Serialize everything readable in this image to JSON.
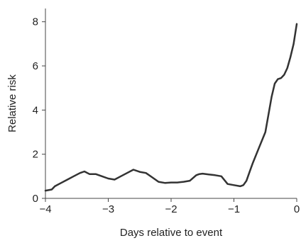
{
  "chart_data": {
    "type": "line",
    "title": "",
    "xlabel": "Days relative to event",
    "ylabel": "Relative risk",
    "xlim": [
      -4,
      0
    ],
    "ylim": [
      0,
      8.6
    ],
    "xticks": [
      -4,
      -3,
      -2,
      -1,
      0
    ],
    "xtick_labels": [
      "−4",
      "−3",
      "−2",
      "−1",
      "0"
    ],
    "yticks": [
      0,
      2,
      4,
      6,
      8
    ],
    "ytick_labels": [
      "0",
      "2",
      "4",
      "6",
      "8"
    ],
    "grid": false,
    "legend": "none",
    "line_color": "#333333",
    "series": [
      {
        "x": [
          -4.0,
          -3.9,
          -3.85,
          -3.75,
          -3.65,
          -3.55,
          -3.45,
          -3.38,
          -3.3,
          -3.2,
          -3.1,
          -3.0,
          -2.9,
          -2.8,
          -2.7,
          -2.6,
          -2.5,
          -2.4,
          -2.3,
          -2.2,
          -2.1,
          -2.0,
          -1.9,
          -1.8,
          -1.7,
          -1.6,
          -1.55,
          -1.5,
          -1.4,
          -1.3,
          -1.2,
          -1.1,
          -1.0,
          -0.9,
          -0.85,
          -0.8,
          -0.75,
          -0.7,
          -0.6,
          -0.5,
          -0.45,
          -0.4,
          -0.35,
          -0.3,
          -0.25,
          -0.2,
          -0.15,
          -0.1,
          -0.05,
          0.0
        ],
        "y": [
          0.35,
          0.4,
          0.55,
          0.7,
          0.85,
          1.0,
          1.15,
          1.22,
          1.1,
          1.1,
          1.0,
          0.9,
          0.85,
          1.0,
          1.15,
          1.3,
          1.2,
          1.15,
          0.95,
          0.75,
          0.7,
          0.72,
          0.72,
          0.75,
          0.8,
          1.05,
          1.1,
          1.12,
          1.08,
          1.05,
          1.0,
          0.65,
          0.6,
          0.55,
          0.6,
          0.8,
          1.2,
          1.6,
          2.3,
          3.0,
          3.8,
          4.6,
          5.2,
          5.4,
          5.45,
          5.6,
          5.9,
          6.4,
          7.0,
          7.9
        ]
      }
    ]
  }
}
